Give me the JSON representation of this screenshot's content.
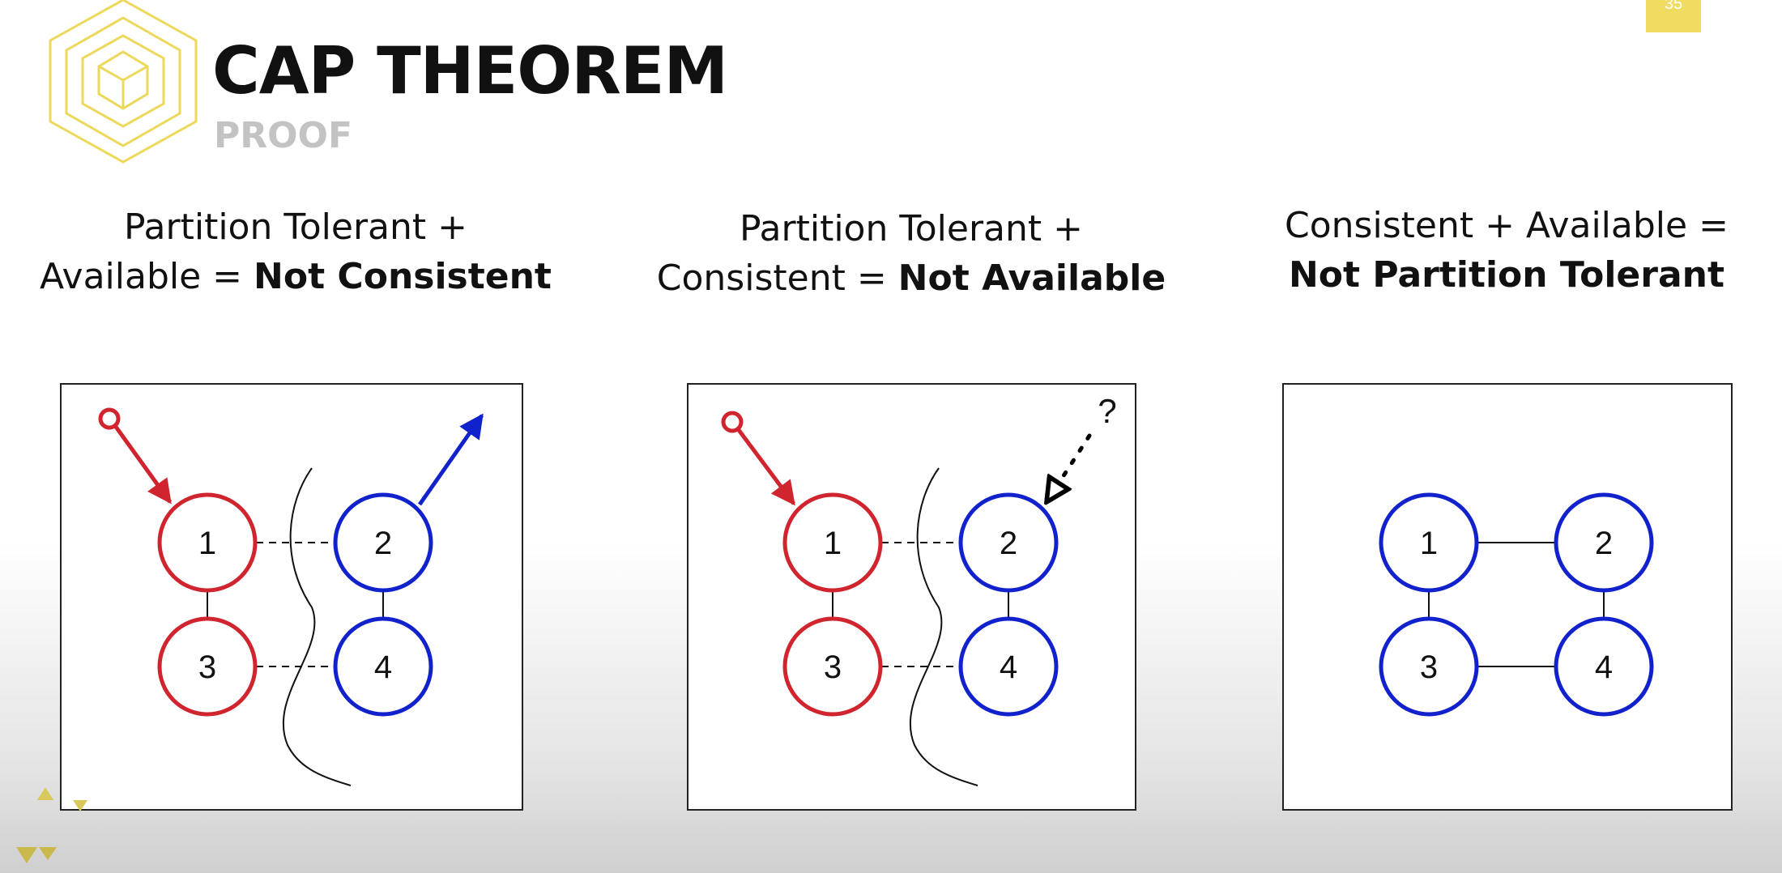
{
  "header": {
    "title": "CAP THEOREM",
    "subtitle": "PROOF",
    "slide_number": "35"
  },
  "captions": [
    {
      "line1": "Partition Tolerant +",
      "line2_plain": "Available = ",
      "line2_bold": "Not Consistent"
    },
    {
      "line1": "Partition Tolerant +",
      "line2_plain": "Consistent = ",
      "line2_bold": "Not Available"
    },
    {
      "line1": "Consistent + Available =",
      "line2_plain": "",
      "line2_bold": "Not Partition Tolerant"
    }
  ],
  "diagrams": [
    {
      "nodes": [
        "1",
        "2",
        "3",
        "4"
      ]
    },
    {
      "nodes": [
        "1",
        "2",
        "3",
        "4"
      ],
      "question_mark": "?"
    },
    {
      "nodes": [
        "1",
        "2",
        "3",
        "4"
      ]
    }
  ],
  "colors": {
    "accent_yellow": "#f1dc62",
    "node_red": "#d0242f",
    "node_blue": "#1122cc",
    "subtitle_gray": "#c3c3c3"
  }
}
